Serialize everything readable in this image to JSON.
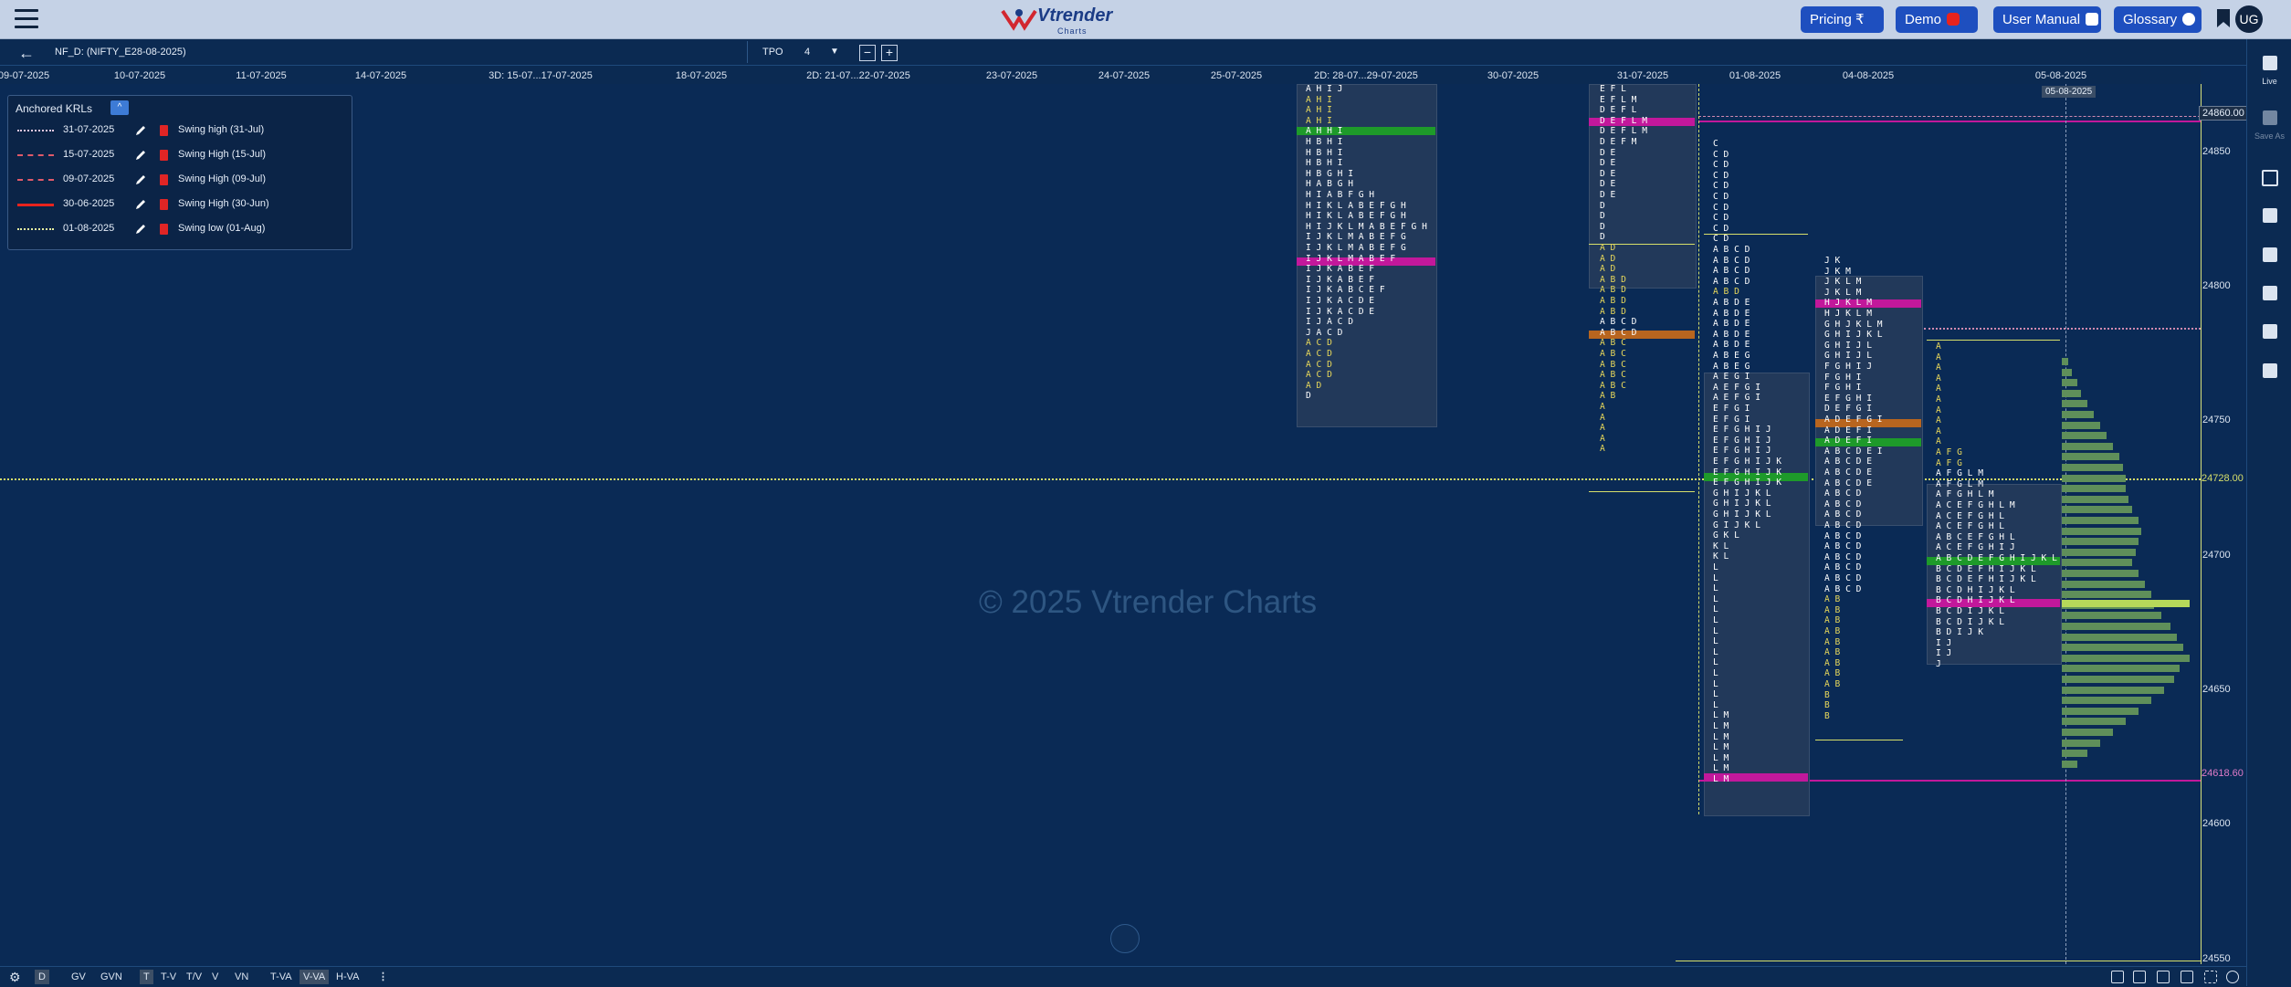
{
  "nav": {
    "pricing": "Pricing ₹",
    "demo": "Demo",
    "user_manual": "User Manual",
    "glossary": "Glossary",
    "avatar": "UG",
    "logo_text": "Vtrender",
    "logo_sub": "Charts"
  },
  "header": {
    "symbol": "NF_D: (NIFTY_E28-08-2025)",
    "tpo_label": "TPO",
    "tpo_value": "4"
  },
  "dates": [
    "09-07-2025",
    "10-07-2025",
    "11-07-2025",
    "14-07-2025",
    "3D: 15-07...17-07-2025",
    "18-07-2025",
    "2D: 21-07...22-07-2025",
    "23-07-2025",
    "24-07-2025",
    "25-07-2025",
    "2D: 28-07...29-07-2025",
    "30-07-2025",
    "31-07-2025",
    "01-08-2025",
    "04-08-2025",
    "05-08-2025"
  ],
  "date_tooltip": "05-08-2025",
  "watermark": "© 2025 Vtrender Charts",
  "price_axis": [
    "24850",
    "24800",
    "24750",
    "24700",
    "24650",
    "24600",
    "24550"
  ],
  "price_tags": {
    "top": "24860.00",
    "mid": "24728.00",
    "low": "24618.60"
  },
  "krl": {
    "title": "Anchored KRLs",
    "rows": [
      {
        "date": "31-07-2025",
        "name": "Swing high (31-Jul)"
      },
      {
        "date": "15-07-2025",
        "name": "Swing High (15-Jul)"
      },
      {
        "date": "09-07-2025",
        "name": "Swing High (09-Jul)"
      },
      {
        "date": "30-06-2025",
        "name": "Swing High (30-Jun)"
      },
      {
        "date": "01-08-2025",
        "name": "Swing low (01-Aug)"
      }
    ]
  },
  "profiles": {
    "p2829": [
      "AHIJ",
      "AHI",
      "AHI",
      "AHI",
      "AHHI",
      "HBHI",
      "HBHI",
      "HBHI",
      "HBGHI",
      "HABGH",
      "HIABFGH",
      "HIKLABEFGH",
      "HIKLABEFGH",
      "HIJKLMABEFGH",
      "IJKLMABEFG",
      "IJKLMABEFG",
      "IJKLMABEF",
      "IJKABEF",
      "IJKABEF",
      "IJKABCEF",
      "IJKACDE",
      "IJKACDE",
      "IJACD",
      "JACD",
      "ACD",
      "ACD",
      "ACD",
      "ACD",
      "AD",
      "D"
    ],
    "p31": [
      "EFL",
      "EFLM",
      "DEFL",
      "DEFLM",
      "DEFLM",
      "DEFM",
      "DE",
      "DE",
      "DE",
      "DE",
      "DE",
      "D",
      "D",
      "D",
      "D",
      "AD",
      "AD",
      "AD",
      "ABD",
      "ABD",
      "ABD",
      "ABD",
      "ABCD",
      "ABCD",
      "ABC",
      "ABC",
      "ABC",
      "ABC",
      "ABC",
      "AB",
      "A",
      "A",
      "A",
      "A",
      "A"
    ],
    "p01": [
      "C",
      "CD",
      "CD",
      "CD",
      "CD",
      "CD",
      "CD",
      "CD",
      "CD",
      "CD",
      "ABCD",
      "ABCD",
      "ABCD",
      "ABCD",
      "ABD",
      "ABDE",
      "ABDE",
      "ABDE",
      "ABDE",
      "ABDE",
      "ABEG",
      "ABEG",
      "AEGI",
      "AEFGI",
      "AEFGI",
      "EFGI",
      "EFGI",
      "EFGHIJ",
      "EFGHIJ",
      "EFGHIJ",
      "EFGHIJK",
      "EFGHIJK",
      "EFGHIJK",
      "GHIJKL",
      "GHIJKL",
      "GHIJKL",
      "GIJKL",
      "GKL",
      "KL",
      "KL",
      "L",
      "L",
      "L",
      "L",
      "L",
      "L",
      "L",
      "L",
      "L",
      "L",
      "L",
      "L",
      "L",
      "L",
      "LM",
      "LM",
      "LM",
      "LM",
      "LM",
      "LM",
      "LM"
    ],
    "p04": [
      "JK",
      "JKM",
      "JKLM",
      "JKLM",
      "HJKLM",
      "HJKLM",
      "GHJKLM",
      "GHIJKL",
      "GHIJL",
      "GHIJL",
      "FGHIJ",
      "FGHI",
      "FGHI",
      "EFGHI",
      "DEFGI",
      "ADEFGI",
      "ADEFI",
      "ADEFI",
      "ABCDEI",
      "ABCDE",
      "ABCDE",
      "ABCDE",
      "ABCD",
      "ABCD",
      "ABCD",
      "ABCD",
      "ABCD",
      "ABCD",
      "ABCD",
      "ABCD",
      "ABCD",
      "ABCD",
      "AB",
      "AB",
      "AB",
      "AB",
      "AB",
      "AB",
      "AB",
      "AB",
      "AB",
      "B",
      "B",
      "B"
    ],
    "p05": [
      "A",
      "A",
      "A",
      "A",
      "A",
      "A",
      "A",
      "A",
      "A",
      "A",
      "AFG",
      "AFG",
      "AFGLM",
      "AFGLM",
      "AFGHLM",
      "ACEFGHLM",
      "ACEFGHL",
      "ACEFGHL",
      "ABCEFGHL",
      "ACEFGHIJ",
      "ABCDEFGHIJKL",
      "BCDEFHIJKL",
      "BCDEFHIJKL",
      "BCDHIJKL",
      "BCDHIJKL",
      "BCDIJKL",
      "BCDIJKL",
      "BDIJK",
      "IJ",
      "IJ",
      "J"
    ]
  },
  "bottom": {
    "d": "D",
    "gv": "GV",
    "gvn": "GVN",
    "t": "T",
    "tv": "T-V",
    "tv2": "T/V",
    "v": "V",
    "vn": "VN",
    "tva": "T-VA",
    "vva": "V-VA",
    "hva": "H-VA"
  },
  "rightbar": {
    "live": "Live",
    "save_as": "Save As"
  },
  "colors": {
    "background": "#0a2a55",
    "navbar": "#c5d2e6",
    "button": "#1e4fbf",
    "poc_magenta": "#c2189b",
    "va_green": "#1e9a2a",
    "ib_orange": "#b8651f",
    "level_yellow": "#d7df6a",
    "histogram": "#5f8f5a"
  }
}
